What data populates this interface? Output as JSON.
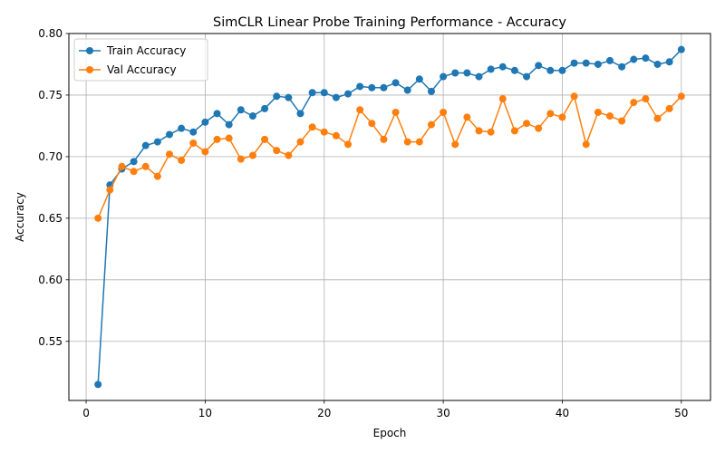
{
  "chart_data": {
    "type": "line",
    "title": "SimCLR Linear Probe Training Performance - Accuracy",
    "xlabel": "Epoch",
    "ylabel": "Accuracy",
    "xlim": [
      -1.45,
      52.45
    ],
    "ylim": [
      0.502,
      0.8
    ],
    "xticks": [
      0,
      10,
      20,
      30,
      40,
      50
    ],
    "yticks": [
      0.55,
      0.6,
      0.65,
      0.7,
      0.75,
      0.8
    ],
    "ytick_labels": [
      "0.55",
      "0.60",
      "0.65",
      "0.70",
      "0.75",
      "0.80"
    ],
    "grid": true,
    "legend_position": "upper left",
    "x": [
      1,
      2,
      3,
      4,
      5,
      6,
      7,
      8,
      9,
      10,
      11,
      12,
      13,
      14,
      15,
      16,
      17,
      18,
      19,
      20,
      21,
      22,
      23,
      24,
      25,
      26,
      27,
      28,
      29,
      30,
      31,
      32,
      33,
      34,
      35,
      36,
      37,
      38,
      39,
      40,
      41,
      42,
      43,
      44,
      45,
      46,
      47,
      48,
      49,
      50
    ],
    "series": [
      {
        "name": "Train Accuracy",
        "color": "#1f77b4",
        "values": [
          0.515,
          0.677,
          0.69,
          0.696,
          0.709,
          0.712,
          0.718,
          0.723,
          0.72,
          0.728,
          0.735,
          0.726,
          0.738,
          0.733,
          0.739,
          0.749,
          0.748,
          0.735,
          0.752,
          0.752,
          0.748,
          0.751,
          0.757,
          0.756,
          0.756,
          0.76,
          0.754,
          0.763,
          0.753,
          0.765,
          0.768,
          0.768,
          0.765,
          0.771,
          0.773,
          0.77,
          0.765,
          0.774,
          0.77,
          0.77,
          0.776,
          0.776,
          0.775,
          0.778,
          0.773,
          0.779,
          0.78,
          0.775,
          0.777,
          0.787
        ]
      },
      {
        "name": "Val Accuracy",
        "color": "#ff7f0e",
        "values": [
          0.65,
          0.673,
          0.692,
          0.688,
          0.692,
          0.684,
          0.702,
          0.697,
          0.711,
          0.704,
          0.714,
          0.715,
          0.698,
          0.701,
          0.714,
          0.705,
          0.701,
          0.712,
          0.724,
          0.72,
          0.717,
          0.71,
          0.738,
          0.727,
          0.714,
          0.736,
          0.712,
          0.712,
          0.726,
          0.736,
          0.71,
          0.732,
          0.721,
          0.72,
          0.747,
          0.721,
          0.727,
          0.723,
          0.735,
          0.732,
          0.749,
          0.71,
          0.736,
          0.733,
          0.729,
          0.744,
          0.747,
          0.731,
          0.739,
          0.749
        ]
      }
    ]
  }
}
